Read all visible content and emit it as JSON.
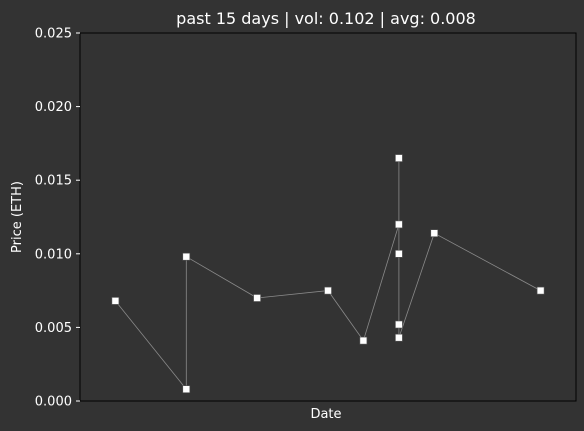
{
  "chart_data": {
    "type": "line",
    "title": "past 15 days | vol: 0.102 | avg: 0.008",
    "xlabel": "Date",
    "ylabel": "Price (ETH)",
    "ylim": [
      0,
      0.025
    ],
    "yticks": [
      "0.000",
      "0.005",
      "0.010",
      "0.015",
      "0.020",
      "0.025"
    ],
    "x_tick_labels": "none shown",
    "grid": false,
    "legend": "none",
    "series": [
      {
        "values": [
          [
            1.0,
            0.0068
          ],
          [
            3.0,
            0.0008
          ],
          [
            3.0,
            0.0098
          ],
          [
            5.0,
            0.007
          ],
          [
            7.0,
            0.0075
          ],
          [
            8.0,
            0.0041
          ],
          [
            9.0,
            0.012
          ],
          [
            9.0,
            0.0165
          ],
          [
            9.0,
            0.01
          ],
          [
            9.0,
            0.0052
          ],
          [
            9.0,
            0.0043
          ],
          [
            10.0,
            0.0114
          ],
          [
            13.0,
            0.0075
          ]
        ]
      }
    ],
    "colors": {
      "background": "#333333",
      "line": "#8a8a8a",
      "marker": "#ffffff",
      "text": "#ffffff",
      "axes": "#000000"
    }
  }
}
